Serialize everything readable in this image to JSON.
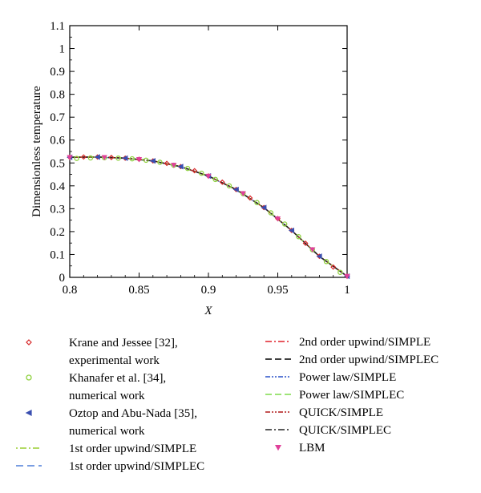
{
  "chart_data": {
    "type": "line",
    "xlabel": "X",
    "ylabel": "Dimensionless temperature",
    "xlim": [
      0.8,
      1.0
    ],
    "ylim": [
      0,
      1.1
    ],
    "xticks": [
      "0.8",
      "0.85",
      "0.9",
      "0.95",
      "1"
    ],
    "yticks": [
      "0",
      "0.1",
      "0.2",
      "0.3",
      "0.4",
      "0.5",
      "0.6",
      "0.7",
      "0.8",
      "0.9",
      "1",
      "1.1"
    ],
    "grid": false,
    "legend_position": "below",
    "series": [
      {
        "name": "Krane and Jessee [32], experimental work",
        "style": "marker",
        "marker": "diamond",
        "color": "#d62728",
        "x": [
          0.8,
          0.81,
          0.82,
          0.83,
          0.84,
          0.85,
          0.86,
          0.87,
          0.88,
          0.89,
          0.9,
          0.91,
          0.92,
          0.93,
          0.94,
          0.95,
          0.96,
          0.97,
          0.98,
          0.99,
          1.0
        ],
        "y": [
          0.525,
          0.526,
          0.526,
          0.524,
          0.521,
          0.516,
          0.509,
          0.498,
          0.484,
          0.466,
          0.443,
          0.416,
          0.384,
          0.347,
          0.305,
          0.257,
          0.205,
          0.149,
          0.092,
          0.045,
          0.005
        ]
      },
      {
        "name": "Khanafer et al. [34], numerical work",
        "style": "marker",
        "marker": "circle",
        "color": "#8fd13f",
        "x": [
          0.805,
          0.815,
          0.825,
          0.835,
          0.845,
          0.855,
          0.865,
          0.875,
          0.885,
          0.895,
          0.905,
          0.915,
          0.925,
          0.935,
          0.945,
          0.955,
          0.965,
          0.975,
          0.985,
          0.995
        ],
        "y": [
          0.52,
          0.522,
          0.523,
          0.521,
          0.518,
          0.512,
          0.503,
          0.49,
          0.476,
          0.455,
          0.428,
          0.4,
          0.366,
          0.327,
          0.282,
          0.233,
          0.178,
          0.121,
          0.069,
          0.022
        ]
      },
      {
        "name": "Oztop and Abu-Nada [35], numerical work",
        "style": "marker",
        "marker": "triangle-left",
        "color": "#3a4fb0",
        "x": [
          0.8,
          0.82,
          0.84,
          0.86,
          0.88,
          0.9,
          0.92,
          0.94,
          0.96,
          0.98,
          1.0
        ],
        "y": [
          0.525,
          0.526,
          0.521,
          0.509,
          0.484,
          0.443,
          0.384,
          0.305,
          0.205,
          0.092,
          0.005
        ]
      },
      {
        "name": "1st order upwind/SIMPLE",
        "style": "line",
        "dash": "2,3,8,3",
        "color": "#9acd32",
        "x": [
          0.8,
          0.82,
          0.84,
          0.86,
          0.88,
          0.9,
          0.92,
          0.94,
          0.96,
          0.98,
          1.0
        ],
        "y": [
          0.524,
          0.525,
          0.52,
          0.508,
          0.483,
          0.442,
          0.383,
          0.304,
          0.204,
          0.091,
          0.004
        ]
      },
      {
        "name": "1st order upwind/SIMPLEC",
        "style": "line",
        "dash": "9,5",
        "color": "#4f7fd8",
        "x": [
          0.8,
          0.82,
          0.84,
          0.86,
          0.88,
          0.9,
          0.92,
          0.94,
          0.96,
          0.98,
          1.0
        ],
        "y": [
          0.524,
          0.525,
          0.52,
          0.508,
          0.483,
          0.442,
          0.383,
          0.304,
          0.204,
          0.091,
          0.004
        ]
      },
      {
        "name": "2nd order upwind/SIMPLE",
        "style": "line",
        "dash": "8,3,2,3",
        "color": "#e0202a",
        "x": [
          0.8,
          0.82,
          0.84,
          0.86,
          0.88,
          0.9,
          0.92,
          0.94,
          0.96,
          0.98,
          1.0
        ],
        "y": [
          0.525,
          0.526,
          0.521,
          0.509,
          0.484,
          0.443,
          0.384,
          0.305,
          0.205,
          0.092,
          0.005
        ]
      },
      {
        "name": "2nd order upwind/SIMPLEC",
        "style": "line",
        "dash": "8,4",
        "color": "#000000",
        "x": [
          0.8,
          0.82,
          0.84,
          0.86,
          0.88,
          0.9,
          0.92,
          0.94,
          0.96,
          0.98,
          1.0
        ],
        "y": [
          0.525,
          0.526,
          0.521,
          0.509,
          0.484,
          0.443,
          0.384,
          0.305,
          0.205,
          0.092,
          0.005
        ]
      },
      {
        "name": "Power law/SIMPLE",
        "style": "line",
        "dash": "6,2,2,2,2,2",
        "color": "#2850c8",
        "x": [
          0.8,
          0.82,
          0.84,
          0.86,
          0.88,
          0.9,
          0.92,
          0.94,
          0.96,
          0.98,
          1.0
        ],
        "y": [
          0.525,
          0.526,
          0.521,
          0.509,
          0.484,
          0.443,
          0.384,
          0.305,
          0.205,
          0.092,
          0.005
        ]
      },
      {
        "name": "Power law/SIMPLEC",
        "style": "line",
        "dash": "8,4",
        "color": "#7fdc4a",
        "x": [
          0.8,
          0.82,
          0.84,
          0.86,
          0.88,
          0.9,
          0.92,
          0.94,
          0.96,
          0.98,
          1.0
        ],
        "y": [
          0.525,
          0.526,
          0.521,
          0.509,
          0.484,
          0.443,
          0.384,
          0.305,
          0.205,
          0.092,
          0.005
        ]
      },
      {
        "name": "QUICK/SIMPLE",
        "style": "line",
        "dash": "6,2,2,2,2,2",
        "color": "#b01818",
        "x": [
          0.8,
          0.82,
          0.84,
          0.86,
          0.88,
          0.9,
          0.92,
          0.94,
          0.96,
          0.98,
          1.0
        ],
        "y": [
          0.525,
          0.526,
          0.521,
          0.509,
          0.484,
          0.443,
          0.384,
          0.305,
          0.205,
          0.092,
          0.005
        ]
      },
      {
        "name": "QUICK/SIMPLEC",
        "style": "line",
        "dash": "8,3,2,3",
        "color": "#222222",
        "x": [
          0.8,
          0.82,
          0.84,
          0.86,
          0.88,
          0.9,
          0.92,
          0.94,
          0.96,
          0.98,
          1.0
        ],
        "y": [
          0.525,
          0.526,
          0.521,
          0.509,
          0.484,
          0.443,
          0.384,
          0.305,
          0.205,
          0.092,
          0.005
        ]
      },
      {
        "name": "LBM",
        "style": "marker",
        "marker": "triangle-down",
        "color": "#e0409a",
        "x": [
          0.8,
          0.825,
          0.85,
          0.875,
          0.9,
          0.925,
          0.95,
          0.975,
          1.0
        ],
        "y": [
          0.525,
          0.525,
          0.516,
          0.491,
          0.443,
          0.367,
          0.257,
          0.122,
          0.005
        ]
      }
    ],
    "legend_left": [
      {
        "marker": "diamond",
        "color": "#d62728",
        "lines": [
          "Krane and Jessee [32],",
          "experimental work"
        ]
      },
      {
        "marker": "circle",
        "color": "#8fd13f",
        "lines": [
          "Khanafer et al. [34],",
          "numerical work"
        ]
      },
      {
        "marker": "triangle-left",
        "color": "#3a4fb0",
        "lines": [
          "Oztop and Abu-Nada [35],",
          "numerical work"
        ]
      },
      {
        "dash": "2,3,8,3",
        "color": "#9acd32",
        "lines": [
          "1st order upwind/SIMPLE"
        ]
      },
      {
        "dash": "9,5",
        "color": "#4f7fd8",
        "lines": [
          "1st order upwind/SIMPLEC"
        ]
      }
    ],
    "legend_right": [
      {
        "dash": "8,3,2,3",
        "color": "#e0202a",
        "lines": [
          "2nd order upwind/SIMPLE"
        ]
      },
      {
        "dash": "8,4",
        "color": "#000000",
        "lines": [
          "2nd order upwind/SIMPLEC"
        ]
      },
      {
        "dash": "6,2,2,2,2,2",
        "color": "#2850c8",
        "lines": [
          "Power law/SIMPLE"
        ]
      },
      {
        "dash": "8,4",
        "color": "#7fdc4a",
        "lines": [
          "Power law/SIMPLEC"
        ]
      },
      {
        "dash": "6,2,2,2,2,2",
        "color": "#b01818",
        "lines": [
          "QUICK/SIMPLE"
        ]
      },
      {
        "dash": "8,3,2,3",
        "color": "#222222",
        "lines": [
          "QUICK/SIMPLEC"
        ]
      },
      {
        "marker": "triangle-down",
        "color": "#e0409a",
        "lines": [
          "LBM"
        ]
      }
    ]
  }
}
